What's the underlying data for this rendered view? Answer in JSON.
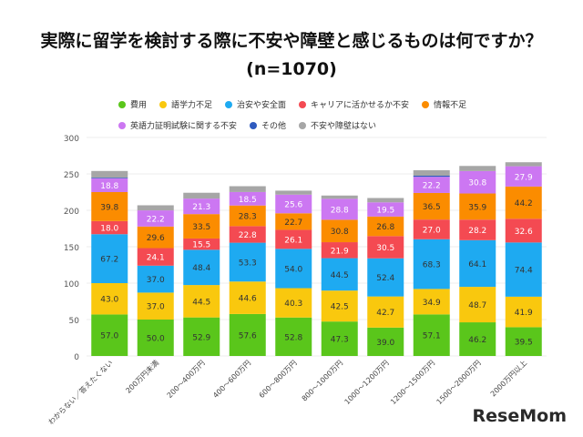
{
  "title_line1": "実際に留学を検討する際に不安や障壁と感じるものは何ですか？",
  "title_line2": "(n=1070)",
  "logo": "ReseMom",
  "chart_data": {
    "type": "bar",
    "stacked": true,
    "ylim": [
      0,
      300
    ],
    "yticks": [
      0,
      50,
      100,
      150,
      200,
      250,
      300
    ],
    "grid": true,
    "legend": "top",
    "categories": [
      "わからない／答えたくない",
      "200万円未満",
      "200～400万円",
      "400～600万円",
      "600～800万円",
      "800～1000万円",
      "1000～1200万円",
      "1200～1500万円",
      "1500～2000万円",
      "2000万円以上"
    ],
    "series": [
      {
        "name": "費用",
        "color": "#5ac61b",
        "labeled": true,
        "values": [
          57.0,
          50.0,
          52.9,
          57.6,
          52.8,
          47.3,
          39.0,
          57.1,
          46.2,
          39.5
        ]
      },
      {
        "name": "語学力不足",
        "color": "#f9c80e",
        "labeled": true,
        "values": [
          43.0,
          37.0,
          44.5,
          44.6,
          40.3,
          42.5,
          42.7,
          34.9,
          48.7,
          41.9
        ]
      },
      {
        "name": "治安や安全面",
        "color": "#1eaaf1",
        "labeled": true,
        "values": [
          67.2,
          37.0,
          48.4,
          53.3,
          54.0,
          44.5,
          52.4,
          68.3,
          64.1,
          74.4
        ]
      },
      {
        "name": "キャリアに活かせるか不安",
        "color": "#f44a52",
        "labeled": true,
        "values": [
          18.0,
          24.1,
          15.5,
          22.8,
          26.1,
          21.9,
          30.5,
          27.0,
          28.2,
          32.6
        ]
      },
      {
        "name": "情報不足",
        "color": "#fb8c00",
        "labeled": true,
        "values": [
          39.8,
          29.6,
          33.5,
          28.3,
          22.7,
          30.8,
          26.8,
          36.5,
          35.9,
          44.2
        ]
      },
      {
        "name": "英語力証明試験に関する不安",
        "color": "#cc77f2",
        "labeled": true,
        "values": [
          18.8,
          22.2,
          21.3,
          18.5,
          25.6,
          28.8,
          19.5,
          22.2,
          30.8,
          27.9
        ]
      },
      {
        "name": "その他",
        "color": "#2f5bbf",
        "labeled": false,
        "values": [
          1.0,
          0,
          0,
          0,
          0,
          0,
          0,
          1.5,
          0,
          0
        ]
      },
      {
        "name": "不安や障壁はない",
        "color": "#a6a6a6",
        "labeled": false,
        "values": [
          9.2,
          7.0,
          8.0,
          8.0,
          5.5,
          4.5,
          6.0,
          7.5,
          7.0,
          5.5
        ]
      }
    ]
  }
}
